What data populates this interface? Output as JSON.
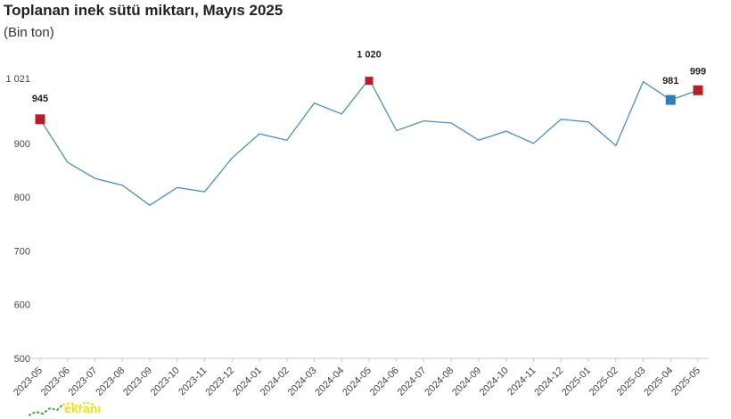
{
  "chart_data": {
    "type": "line",
    "title": "Toplanan inek sütü miktarı, Mayıs 2025",
    "subtitle": "(Bin ton)",
    "xlabel": "",
    "ylabel": "",
    "categories": [
      "2023-05",
      "2023-06",
      "2023-07",
      "2023-08",
      "2023-09",
      "2023-10",
      "2023-11",
      "2023-12",
      "2024-01",
      "2024-02",
      "2024-03",
      "2024-04",
      "2024-05",
      "2024-06",
      "2024-07",
      "2024-08",
      "2024-09",
      "2024-10",
      "2024-11",
      "2024-12",
      "2025-01",
      "2025-02",
      "2025-03",
      "2025-04",
      "2025-05"
    ],
    "series": [
      {
        "name": "",
        "values": [
          945,
          865,
          835,
          822,
          785,
          818,
          810,
          873,
          918,
          906,
          975,
          955,
          1020,
          924,
          942,
          938,
          906,
          923,
          900,
          945,
          940,
          896,
          1015,
          981,
          999
        ],
        "color": "#4a90c2"
      }
    ],
    "yticks": [
      500,
      600,
      700,
      800,
      900,
      1021
    ],
    "ytick_labels": [
      "500",
      "600",
      "700",
      "800",
      "900",
      "1 021"
    ],
    "ylim": [
      500,
      1021
    ],
    "grid": false,
    "legend": "none",
    "highlights": [
      {
        "index": 0,
        "label": "945",
        "color": "#b0202a"
      },
      {
        "index": 12,
        "label": "1 020",
        "color": "#b0202a"
      },
      {
        "index": 23,
        "label": "981",
        "color": "#2e7dc0"
      },
      {
        "index": 24,
        "label": "999",
        "color": "#b0202a"
      }
    ],
    "axis_color": "#c8c8c8"
  },
  "watermark": {
    "text": "ekranı",
    "color": "#e8e020"
  }
}
